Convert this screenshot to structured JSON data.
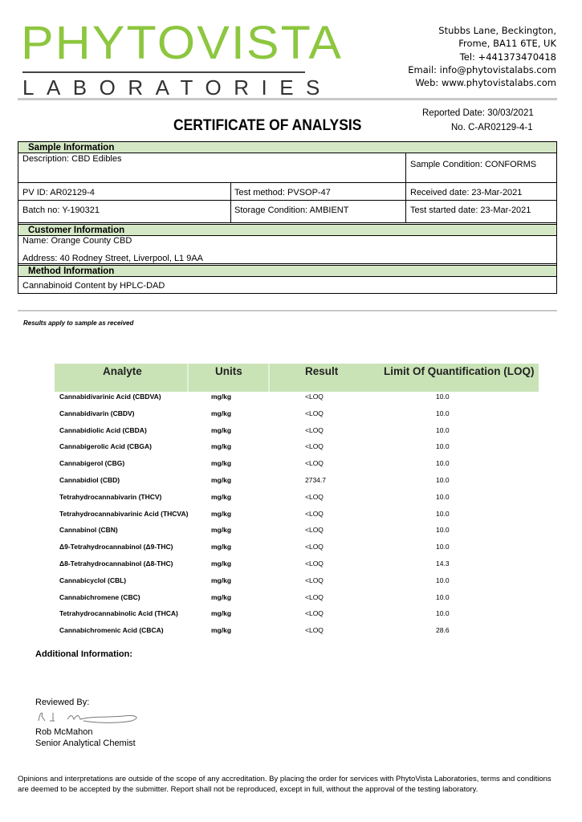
{
  "logo": {
    "brand": "PHYTOVISTA",
    "sub": "LABORATORIES"
  },
  "address": [
    "Stubbs Lane, Beckington,",
    "Frome, BA11 6TE, UK",
    "Tel: +441373470418",
    "Email: info@phytovistalabs.com",
    "Web: www.phytovistalabs.com"
  ],
  "report": {
    "reported_date": "Reported Date: 30/03/2021",
    "number": "No. C-AR02129-4-1",
    "title": "CERTIFICATE OF ANALYSIS"
  },
  "sample": {
    "heading": "Sample Information",
    "description": "Description: CBD Edibles",
    "condition": "Sample Condition: CONFORMS",
    "pv_id": "PV ID: AR02129-4",
    "test_method": "Test method: PVSOP-47",
    "received": "Received date: 23-Mar-2021",
    "batch": "Batch no: Y-190321",
    "storage": "Storage Condition: AMBIENT",
    "test_started": "Test started date: 23-Mar-2021"
  },
  "customer": {
    "heading": "Customer Information",
    "name": "Name:    Orange County CBD",
    "address": "Address:   40 Rodney Street, Liverpool, L1 9AA"
  },
  "method": {
    "heading": "Method Information",
    "value": "Cannabinoid Content by HPLC-DAD"
  },
  "note": "Results apply to sample as received",
  "table": {
    "headers": [
      "Analyte",
      "Units",
      "Result",
      "Limit Of Quantification (LOQ)"
    ],
    "rows": [
      [
        "Cannabidivarinic Acid (CBDVA)",
        "mg/kg",
        "<LOQ",
        "10.0"
      ],
      [
        "Cannabidivarin (CBDV)",
        "mg/kg",
        "<LOQ",
        "10.0"
      ],
      [
        "Cannabidiolic Acid (CBDA)",
        "mg/kg",
        "<LOQ",
        "10.0"
      ],
      [
        "Cannabigerolic Acid (CBGA)",
        "mg/kg",
        "<LOQ",
        "10.0"
      ],
      [
        "Cannabigerol (CBG)",
        "mg/kg",
        "<LOQ",
        "10.0"
      ],
      [
        "Cannabidiol (CBD)",
        "mg/kg",
        "2734.7",
        "10.0"
      ],
      [
        "Tetrahydrocannabivarin (THCV)",
        "mg/kg",
        "<LOQ",
        "10.0"
      ],
      [
        "Tetrahydrocannabivarinic Acid (THCVA)",
        "mg/kg",
        "<LOQ",
        "10.0"
      ],
      [
        "Cannabinol (CBN)",
        "mg/kg",
        "<LOQ",
        "10.0"
      ],
      [
        "Δ9-Tetrahydrocannabinol (Δ9-THC)",
        "mg/kg",
        "<LOQ",
        "10.0"
      ],
      [
        "Δ8-Tetrahydrocannabinol (Δ8-THC)",
        "mg/kg",
        "<LOQ",
        "14.3"
      ],
      [
        "Cannabicyclol (CBL)",
        "mg/kg",
        "<LOQ",
        "10.0"
      ],
      [
        "Cannabichromene (CBC)",
        "mg/kg",
        "<LOQ",
        "10.0"
      ],
      [
        "Tetrahydrocannabinolic Acid (THCA)",
        "mg/kg",
        "<LOQ",
        "10.0"
      ],
      [
        "Cannabichromenic Acid (CBCA)",
        "mg/kg",
        "<LOQ",
        "28.6"
      ]
    ]
  },
  "additional": "Additional Information:",
  "review": {
    "label": "Reviewed By:",
    "signature": "R J Mcmahon",
    "name": "Rob McMahon",
    "role": "Senior Analytical Chemist"
  },
  "footer": "Opinions and interpretations are outside of the scope of any accreditation. By placing the order for services with PhytoVista Laboratories, terms and conditions are deemed to be accepted by the submitter. Report shall not be reproduced, except in full, without the approval of the testing laboratory.",
  "colors": {
    "brand_green": "#8dc63f",
    "section_green": "#d5e8c6",
    "table_header_green": "#c9e3b6"
  }
}
